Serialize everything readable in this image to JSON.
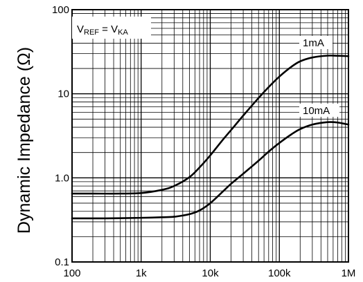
{
  "chart_data": {
    "type": "line",
    "title": "",
    "xlabel": "",
    "ylabel": "Dynamic Impedance (Ω)",
    "x_scale": "log",
    "y_scale": "log",
    "xlim": [
      100,
      1000000
    ],
    "ylim": [
      0.1,
      100
    ],
    "grid": true,
    "x_ticks": [
      {
        "value": 100,
        "label": "100"
      },
      {
        "value": 1000,
        "label": "1k"
      },
      {
        "value": 10000,
        "label": "10k"
      },
      {
        "value": 100000,
        "label": "100k"
      },
      {
        "value": 1000000,
        "label": "1M"
      }
    ],
    "y_ticks": [
      {
        "value": 0.1,
        "label": "0.1"
      },
      {
        "value": 1,
        "label": "1.0"
      },
      {
        "value": 10,
        "label": "10"
      },
      {
        "value": 100,
        "label": "100"
      }
    ],
    "annotation": {
      "v1": "V",
      "s1": "REF",
      "eq": " = V",
      "s2": "KA"
    },
    "series": [
      {
        "name": "1mA",
        "x": [
          100,
          200,
          500,
          1000,
          2000,
          3000,
          5000,
          7000,
          10000,
          15000,
          20000,
          30000,
          50000,
          70000,
          100000,
          150000,
          200000,
          300000,
          500000,
          700000,
          1000000
        ],
        "y": [
          0.65,
          0.65,
          0.65,
          0.66,
          0.72,
          0.8,
          1.02,
          1.33,
          1.85,
          2.8,
          3.7,
          5.5,
          8.9,
          12.0,
          16.0,
          21.0,
          24.3,
          27.0,
          28.4,
          28.3,
          28.0
        ]
      },
      {
        "name": "10mA",
        "x": [
          100,
          300,
          1000,
          2000,
          3000,
          5000,
          7000,
          10000,
          15000,
          20000,
          30000,
          50000,
          70000,
          100000,
          150000,
          200000,
          300000,
          500000,
          700000,
          1000000
        ],
        "y": [
          0.33,
          0.33,
          0.335,
          0.34,
          0.345,
          0.37,
          0.41,
          0.5,
          0.68,
          0.85,
          1.12,
          1.6,
          2.05,
          2.6,
          3.3,
          3.8,
          4.3,
          4.6,
          4.55,
          4.3
        ]
      }
    ]
  }
}
